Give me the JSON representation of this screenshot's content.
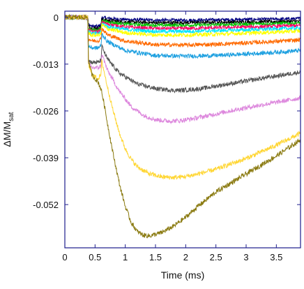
{
  "chart_data": {
    "type": "line",
    "title": "",
    "xlabel": "Time (ms)",
    "ylabel_main": "ΔM/M",
    "ylabel_sub": "sat",
    "xlim": [
      0,
      3.9
    ],
    "ylim": [
      -0.064,
      0.0017
    ],
    "xticks": [
      0,
      0.5,
      1,
      1.5,
      2,
      2.5,
      3,
      3.5
    ],
    "xtick_labels": [
      "0",
      "0.5",
      "1",
      "1.5",
      "2",
      "2.5",
      "3",
      "3.5"
    ],
    "yticks": [
      0,
      -0.013,
      -0.026,
      -0.039,
      -0.052
    ],
    "ytick_labels": [
      "0",
      "-0.013",
      "-0.026",
      "-0.039",
      "-0.052"
    ],
    "grid": false,
    "legend": "none",
    "axis_color": "#1c1c8c",
    "series": [
      {
        "color": "#000080",
        "x": [
          0,
          0.38,
          0.39,
          0.45,
          0.55,
          0.6,
          0.61,
          0.7,
          1.0,
          1.5,
          2.0,
          2.5,
          3.0,
          3.5,
          3.9
        ],
        "y": [
          0,
          0,
          -0.002,
          -0.0025,
          -0.0025,
          -0.002,
          0,
          -0.0003,
          -0.0006,
          -0.0008,
          -0.0008,
          -0.0007,
          -0.0006,
          -0.0005,
          -0.0004
        ]
      },
      {
        "color": "#000000",
        "x": [
          0,
          0.38,
          0.39,
          0.45,
          0.55,
          0.6,
          0.61,
          0.7,
          1.0,
          1.5,
          2.0,
          2.5,
          3.0,
          3.5,
          3.9
        ],
        "y": [
          0,
          0,
          -0.0025,
          -0.003,
          -0.003,
          -0.0025,
          -0.0005,
          -0.0009,
          -0.0013,
          -0.0015,
          -0.0015,
          -0.0014,
          -0.0013,
          -0.0012,
          -0.0011
        ]
      },
      {
        "color": "#00c000",
        "x": [
          0,
          0.38,
          0.39,
          0.45,
          0.55,
          0.6,
          0.61,
          0.7,
          1.0,
          1.5,
          2.0,
          2.5,
          3.0,
          3.5,
          3.9
        ],
        "y": [
          0,
          0,
          -0.003,
          -0.0035,
          -0.0035,
          -0.003,
          -0.0008,
          -0.0013,
          -0.0019,
          -0.0022,
          -0.0022,
          -0.0021,
          -0.0019,
          -0.0017,
          -0.0016
        ]
      },
      {
        "color": "#ff0066",
        "x": [
          0,
          0.38,
          0.39,
          0.45,
          0.55,
          0.6,
          0.61,
          0.7,
          1.0,
          1.5,
          2.0,
          2.5,
          3.0,
          3.5,
          3.9
        ],
        "y": [
          0,
          0,
          -0.0035,
          -0.004,
          -0.004,
          -0.0035,
          -0.0012,
          -0.0019,
          -0.0027,
          -0.0031,
          -0.0031,
          -0.0029,
          -0.0027,
          -0.0025,
          -0.0023
        ]
      },
      {
        "color": "#00e5ff",
        "x": [
          0,
          0.38,
          0.39,
          0.45,
          0.55,
          0.6,
          0.61,
          0.7,
          1.0,
          1.5,
          2.0,
          2.5,
          3.0,
          3.5,
          3.9
        ],
        "y": [
          0,
          0,
          -0.004,
          -0.0045,
          -0.0045,
          -0.004,
          -0.0016,
          -0.0025,
          -0.0034,
          -0.0039,
          -0.0039,
          -0.0037,
          -0.0035,
          -0.0032,
          -0.003
        ]
      },
      {
        "color": "#ffff00",
        "x": [
          0,
          0.38,
          0.39,
          0.45,
          0.55,
          0.6,
          0.61,
          0.7,
          1.0,
          1.5,
          2.0,
          2.5,
          3.0,
          3.5,
          3.9
        ],
        "y": [
          0,
          0,
          -0.0045,
          -0.005,
          -0.005,
          -0.0045,
          -0.002,
          -0.0032,
          -0.0043,
          -0.0049,
          -0.0049,
          -0.0047,
          -0.0044,
          -0.0041,
          -0.0038
        ]
      },
      {
        "color": "#ff6a00",
        "x": [
          0,
          0.38,
          0.39,
          0.45,
          0.55,
          0.6,
          0.61,
          0.7,
          1.0,
          1.5,
          2.0,
          2.5,
          3.0,
          3.5,
          3.9
        ],
        "y": [
          0,
          0,
          -0.006,
          -0.0065,
          -0.0065,
          -0.006,
          -0.003,
          -0.0048,
          -0.0066,
          -0.0076,
          -0.0077,
          -0.0075,
          -0.0071,
          -0.0067,
          -0.0063
        ]
      },
      {
        "color": "#1ea0e0",
        "x": [
          0,
          0.38,
          0.39,
          0.45,
          0.55,
          0.6,
          0.61,
          0.7,
          1.0,
          1.5,
          2.0,
          2.5,
          3.0,
          3.5,
          3.9
        ],
        "y": [
          0,
          0,
          -0.008,
          -0.0085,
          -0.0085,
          -0.008,
          -0.0045,
          -0.0067,
          -0.0092,
          -0.0106,
          -0.0108,
          -0.0106,
          -0.0102,
          -0.0097,
          -0.0092
        ]
      },
      {
        "color": "#555555",
        "x": [
          0,
          0.38,
          0.39,
          0.45,
          0.55,
          0.6,
          0.61,
          0.7,
          0.9,
          1.2,
          1.5,
          1.8,
          2.0,
          2.3,
          2.6,
          3.0,
          3.5,
          3.9
        ],
        "y": [
          0,
          0,
          -0.012,
          -0.0125,
          -0.0125,
          -0.012,
          -0.008,
          -0.0115,
          -0.0155,
          -0.0185,
          -0.0198,
          -0.0203,
          -0.0202,
          -0.0197,
          -0.0188,
          -0.0177,
          -0.0163,
          -0.0152
        ]
      },
      {
        "color": "#dd88dd",
        "x": [
          0,
          0.38,
          0.39,
          0.45,
          0.55,
          0.6,
          0.61,
          0.7,
          0.9,
          1.1,
          1.3,
          1.5,
          1.7,
          1.9,
          2.1,
          2.4,
          2.7,
          3.0,
          3.5,
          3.9
        ],
        "y": [
          0,
          0,
          -0.013,
          -0.014,
          -0.014,
          -0.0135,
          -0.01,
          -0.0145,
          -0.0205,
          -0.0248,
          -0.0272,
          -0.0284,
          -0.0288,
          -0.0287,
          -0.0282,
          -0.0272,
          -0.0261,
          -0.0251,
          -0.0236,
          -0.0224
        ]
      },
      {
        "color": "#ffd633",
        "x": [
          0,
          0.38,
          0.39,
          0.45,
          0.55,
          0.6,
          0.61,
          0.7,
          0.8,
          0.9,
          1.0,
          1.1,
          1.2,
          1.4,
          1.6,
          1.8,
          2.0,
          2.2,
          2.5,
          3.0,
          3.5,
          3.9
        ],
        "y": [
          0,
          0,
          -0.013,
          -0.016,
          -0.017,
          -0.016,
          -0.012,
          -0.019,
          -0.026,
          -0.032,
          -0.0365,
          -0.0395,
          -0.0415,
          -0.0435,
          -0.0443,
          -0.0445,
          -0.0442,
          -0.0435,
          -0.0422,
          -0.0392,
          -0.0355,
          -0.0322
        ]
      },
      {
        "color": "#8a7a10",
        "x": [
          0,
          0.38,
          0.39,
          0.45,
          0.55,
          0.6,
          0.65,
          0.7,
          0.8,
          0.9,
          1.0,
          1.1,
          1.2,
          1.3,
          1.4,
          1.6,
          1.8,
          2.0,
          2.2,
          2.5,
          3.0,
          3.5,
          3.9
        ],
        "y": [
          0,
          0,
          -0.012,
          -0.016,
          -0.018,
          -0.02,
          -0.024,
          -0.029,
          -0.038,
          -0.046,
          -0.0525,
          -0.057,
          -0.0595,
          -0.0605,
          -0.0607,
          -0.0598,
          -0.058,
          -0.0555,
          -0.0525,
          -0.0485,
          -0.0435,
          -0.0385,
          -0.034
        ]
      }
    ]
  }
}
